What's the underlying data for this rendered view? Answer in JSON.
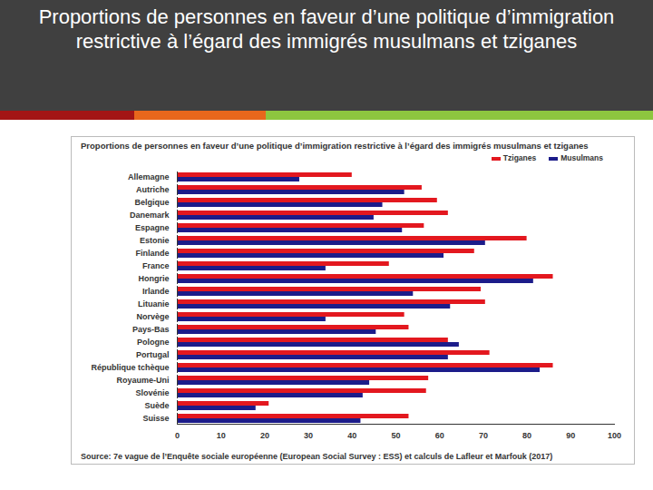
{
  "header": {
    "title": "Proportions de personnes en faveur d’une politique d’immigration restrictive à l’égard des immigrés musulmans et tziganes"
  },
  "chart_data": {
    "type": "bar",
    "orientation": "horizontal",
    "title": "Proportions de personnes en faveur d’une politique d’immigration restrictive à l’égard des immigrés musulmans et tziganes",
    "caption": "Source: 7e vague de l’Enquête sociale européenne (European Social Survey : ESS) et calculs de Lafleur et Marfouk (2017)",
    "categories": [
      "Allemagne",
      "Autriche",
      "Belgique",
      "Danemark",
      "Espagne",
      "Estonie",
      "Finlande",
      "France",
      "Hongrie",
      "Irlande",
      "Lituanie",
      "Norvège",
      "Pays-Bas",
      "Pologne",
      "Portugal",
      "République tchèque",
      "Royaume-Uni",
      "Slovénie",
      "Suède",
      "Suisse"
    ],
    "series": [
      {
        "name": "Tziganes",
        "color": "#e3181f",
        "values": [
          40,
          56,
          59.5,
          62,
          56.5,
          80,
          68,
          48.5,
          86,
          69.5,
          70.5,
          52,
          53,
          62,
          71.5,
          86,
          57.5,
          57,
          21,
          53
        ]
      },
      {
        "name": "Musulmans",
        "color": "#1c1c8a",
        "values": [
          28,
          52,
          47,
          45,
          51.5,
          70.5,
          61,
          34,
          81.5,
          54,
          62.5,
          34,
          45.5,
          64.5,
          62,
          83,
          44,
          42.5,
          18,
          42
        ]
      }
    ],
    "xlim": [
      0,
      100
    ],
    "xticks": [
      0,
      10,
      20,
      30,
      40,
      50,
      60,
      70,
      80,
      90,
      100
    ],
    "grid": false,
    "legend": "top-right"
  }
}
